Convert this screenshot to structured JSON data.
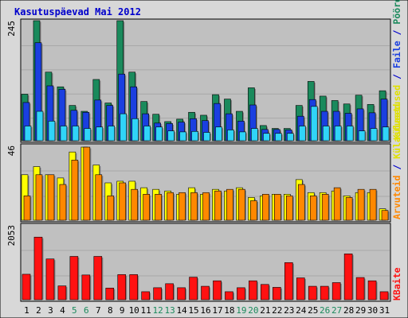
{
  "title": "Kasutuspäevad Mai 2012",
  "colors": {
    "frame_bg": "#d8d8d8",
    "plot_bg": "#c0c0c0",
    "title": "#0000cc",
    "pageviews": "#1a8a5c",
    "files": "#1a3fe0",
    "hits": "#30d4f8",
    "visits": "#ffff00",
    "sites": "#ff8800",
    "kbytes": "#ff1111",
    "weekend": "#1a8a5c",
    "weekday": "#000000"
  },
  "right_labels": {
    "top": {
      "pageviews": "Pöördumisi",
      "sep1": " / ",
      "files": "Faile",
      "sep2": " / ",
      "hits": "Külastused"
    },
    "middle": {
      "visits": "Külastused",
      "sep": " / ",
      "sites": "Arvuteid"
    },
    "bottom": {
      "kbytes": "KBaite"
    }
  },
  "chart_data": {
    "type": "bar",
    "title": "Kasutuspäevad Mai 2012",
    "days": [
      "1",
      "2",
      "3",
      "4",
      "5",
      "6",
      "7",
      "8",
      "9",
      "10",
      "11",
      "12",
      "13",
      "14",
      "15",
      "16",
      "17",
      "18",
      "19",
      "20",
      "21",
      "22",
      "23",
      "24",
      "25",
      "26",
      "27",
      "28",
      "29",
      "30",
      "31"
    ],
    "weekend_days": [
      5,
      6,
      12,
      13,
      19,
      20,
      26,
      27
    ],
    "panels": [
      {
        "name": "hits-files-pages",
        "max_label": "245",
        "ylim": [
          0,
          245
        ],
        "series": [
          {
            "name": "Pöördumisi",
            "color_key": "pageviews",
            "values": [
              95,
              245,
              140,
              110,
              72,
              60,
              125,
              77,
              245,
              140,
              80,
              54,
              39,
              44,
              58,
              52,
              94,
              85,
              60,
              108,
              31,
              25,
              25,
              72,
              121,
              91,
              82,
              75,
              93,
              74,
              102
            ]
          },
          {
            "name": "Faile",
            "color_key": "files",
            "values": [
              78,
              200,
              112,
              105,
              62,
              58,
              83,
              72,
              136,
              110,
              55,
              36,
              35,
              38,
              45,
              41,
              76,
              55,
              40,
              73,
              23,
              23,
              22,
              50,
              84,
              60,
              60,
              56,
              65,
              57,
              85
            ]
          },
          {
            "name": "Külastused",
            "color_key": "hits",
            "values": [
              30,
              60,
              40,
              30,
              30,
              25,
              28,
              30,
              55,
              45,
              30,
              28,
              20,
              18,
              19,
              17,
              28,
              22,
              18,
              25,
              15,
              15,
              15,
              30,
              70,
              30,
              30,
              30,
              20,
              25,
              28
            ]
          }
        ]
      },
      {
        "name": "visits-sites",
        "max_label": "46",
        "ylim": [
          0,
          46
        ],
        "series": [
          {
            "name": "Külastused",
            "color_key": "visits",
            "values": [
              28,
              33,
              28,
              26,
              42,
              45,
              34,
              23,
              24,
              24,
              20,
              19,
              18,
              16,
              20,
              16,
              19,
              18,
              20,
              14,
              15,
              16,
              16,
              25,
              17,
              17,
              18,
              15,
              17,
              17,
              7
            ]
          },
          {
            "name": "Arvuteid",
            "color_key": "sites",
            "values": [
              15,
              28,
              28,
              22,
              37,
              45,
              28,
              15,
              23,
              19,
              16,
              16,
              17,
              17,
              17,
              17,
              18,
              19,
              19,
              12,
              16,
              16,
              15,
              22,
              15,
              16,
              20,
              14,
              19,
              19,
              6
            ]
          }
        ]
      },
      {
        "name": "kbytes",
        "max_label": "2053",
        "ylim": [
          0,
          2053
        ],
        "series": [
          {
            "name": "KBaite",
            "color_key": "kbytes",
            "values": [
              700,
              1720,
              1120,
              380,
              1190,
              680,
              1190,
              320,
              690,
              690,
              220,
              330,
              440,
              330,
              620,
              370,
              520,
              220,
              330,
              520,
              420,
              340,
              1020,
              600,
              370,
              370,
              470,
              1260,
              610,
              520,
              220
            ]
          }
        ]
      }
    ]
  }
}
